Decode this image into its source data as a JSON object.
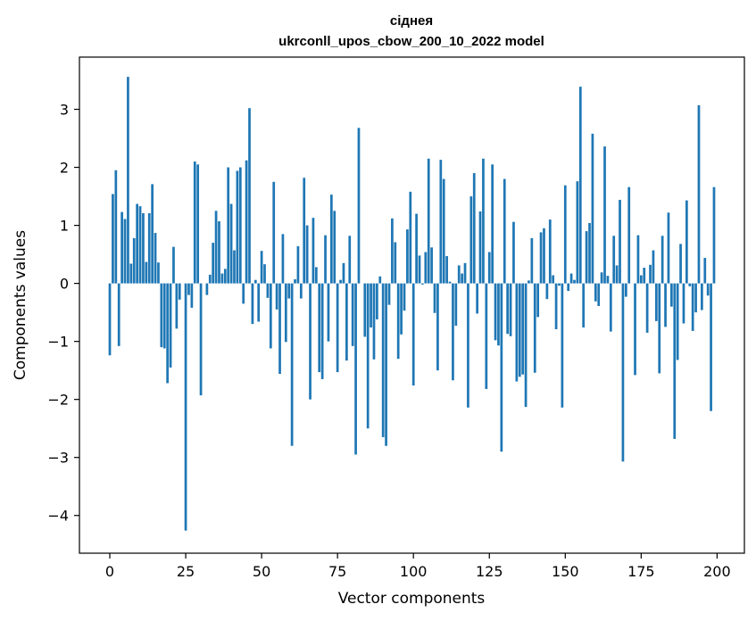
{
  "chart_data": {
    "type": "bar",
    "title_line1": "сіднея",
    "title_line2": "ukrconll_upos_cbow_200_10_2022 model",
    "xlabel": "Vector components",
    "ylabel": "Components values",
    "xlim": [
      -10,
      209
    ],
    "ylim": [
      -4.65,
      3.9
    ],
    "xticks": [
      0,
      25,
      50,
      75,
      100,
      125,
      150,
      175,
      200
    ],
    "yticks": [
      -4,
      -3,
      -2,
      -1,
      0,
      1,
      2,
      3
    ],
    "bar_color": "#1f77b4",
    "grid": false,
    "values": [
      -1.24,
      1.54,
      1.95,
      -1.08,
      1.23,
      1.11,
      3.56,
      0.34,
      0.78,
      1.37,
      1.33,
      1.21,
      0.37,
      1.21,
      1.71,
      0.87,
      0.36,
      -1.1,
      -1.12,
      -1.72,
      -1.45,
      0.63,
      -0.78,
      -0.28,
      0.0,
      -4.26,
      -0.2,
      -0.42,
      2.1,
      2.05,
      -1.93,
      0.0,
      -0.2,
      0.15,
      0.7,
      1.25,
      1.07,
      0.17,
      0.25,
      2.0,
      1.37,
      0.57,
      1.94,
      2.0,
      -0.35,
      2.12,
      3.02,
      -0.7,
      0.06,
      -0.66,
      0.56,
      0.33,
      -0.25,
      -1.12,
      1.75,
      -0.45,
      -1.56,
      0.85,
      -1.01,
      -0.26,
      -2.8,
      0.07,
      0.64,
      -0.26,
      1.82,
      1.0,
      -2.0,
      1.13,
      0.28,
      -1.53,
      -1.65,
      0.83,
      -1.0,
      1.53,
      1.25,
      -1.53,
      0.06,
      0.35,
      -1.33,
      0.82,
      -1.08,
      -2.95,
      2.68,
      0.0,
      -0.92,
      -2.5,
      -0.76,
      -1.31,
      -0.62,
      0.12,
      -2.65,
      -2.8,
      -0.37,
      1.12,
      0.71,
      -1.3,
      -0.88,
      -0.47,
      0.93,
      1.58,
      -1.76,
      1.2,
      0.48,
      -0.02,
      0.54,
      2.15,
      0.62,
      -0.51,
      -1.5,
      2.13,
      1.8,
      0.47,
      0.03,
      -1.67,
      -0.73,
      0.31,
      0.17,
      0.35,
      -2.14,
      1.5,
      1.9,
      -0.52,
      1.24,
      2.15,
      -1.82,
      0.54,
      2.05,
      -0.98,
      -1.07,
      -2.9,
      1.8,
      -0.87,
      -0.91,
      1.06,
      -1.69,
      -1.61,
      -1.57,
      -2.13,
      0.05,
      0.78,
      -1.54,
      -0.58,
      0.88,
      0.95,
      -0.27,
      1.1,
      0.14,
      -0.79,
      -0.04,
      -2.14,
      1.69,
      -0.13,
      0.17,
      0.06,
      1.76,
      3.39,
      -0.76,
      0.9,
      1.04,
      2.58,
      -0.31,
      -0.39,
      0.19,
      2.36,
      0.13,
      -0.83,
      0.82,
      0.31,
      1.44,
      -3.07,
      -0.23,
      1.66,
      0.0,
      -1.58,
      0.83,
      0.14,
      0.27,
      -0.85,
      0.32,
      0.57,
      -0.65,
      -1.55,
      0.82,
      -0.75,
      1.22,
      -0.4,
      -2.68,
      -1.32,
      0.68,
      -0.69,
      1.43,
      -0.05,
      -0.82,
      -0.5,
      3.07,
      -0.46,
      0.44,
      -0.21,
      -2.2,
      1.66
    ]
  }
}
